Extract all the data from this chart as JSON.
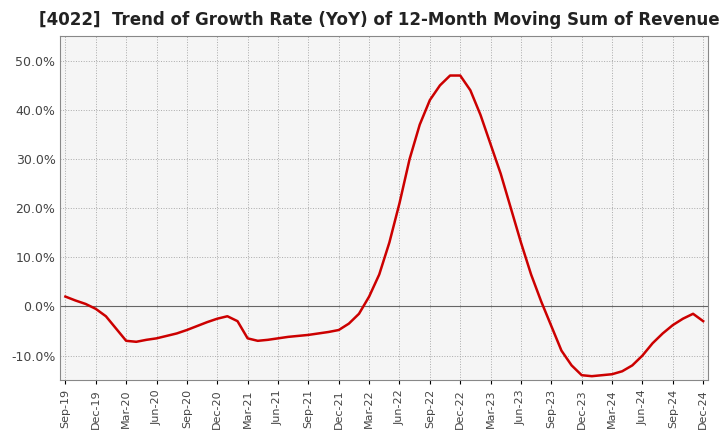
{
  "title": "[4022]  Trend of Growth Rate (YoY) of 12-Month Moving Sum of Revenues",
  "title_fontsize": 12,
  "line_color": "#cc0000",
  "background_color": "#ffffff",
  "plot_bg_color": "#f5f5f5",
  "grid_color": "#aaaaaa",
  "ylim": [
    -0.15,
    0.55
  ],
  "yticks": [
    -0.1,
    0.0,
    0.1,
    0.2,
    0.3,
    0.4,
    0.5
  ],
  "values": [
    0.02,
    0.012,
    0.005,
    -0.005,
    -0.02,
    -0.045,
    -0.07,
    -0.072,
    -0.068,
    -0.065,
    -0.06,
    -0.055,
    -0.048,
    -0.04,
    -0.032,
    -0.025,
    -0.02,
    -0.03,
    -0.065,
    -0.07,
    -0.068,
    -0.065,
    -0.062,
    -0.06,
    -0.058,
    -0.055,
    -0.052,
    -0.048,
    -0.035,
    -0.015,
    0.02,
    0.065,
    0.13,
    0.21,
    0.3,
    0.37,
    0.42,
    0.45,
    0.47,
    0.47,
    0.44,
    0.39,
    0.33,
    0.27,
    0.2,
    0.13,
    0.065,
    0.01,
    -0.04,
    -0.09,
    -0.12,
    -0.14,
    -0.142,
    -0.14,
    -0.138,
    -0.132,
    -0.12,
    -0.1,
    -0.075,
    -0.055,
    -0.038,
    -0.025,
    -0.015,
    -0.03
  ],
  "xtick_labels": [
    "Sep-19",
    "Dec-19",
    "Mar-20",
    "Jun-20",
    "Sep-20",
    "Dec-20",
    "Mar-21",
    "Jun-21",
    "Sep-21",
    "Dec-21",
    "Mar-22",
    "Jun-22",
    "Sep-22",
    "Dec-22",
    "Mar-23",
    "Jun-23",
    "Sep-23",
    "Dec-23",
    "Mar-24",
    "Jun-24",
    "Sep-24",
    "Dec-24"
  ],
  "xtick_indices": [
    0,
    3,
    6,
    9,
    12,
    15,
    18,
    21,
    24,
    27,
    30,
    33,
    36,
    39,
    42,
    45,
    48,
    51,
    54,
    57,
    60,
    63
  ]
}
